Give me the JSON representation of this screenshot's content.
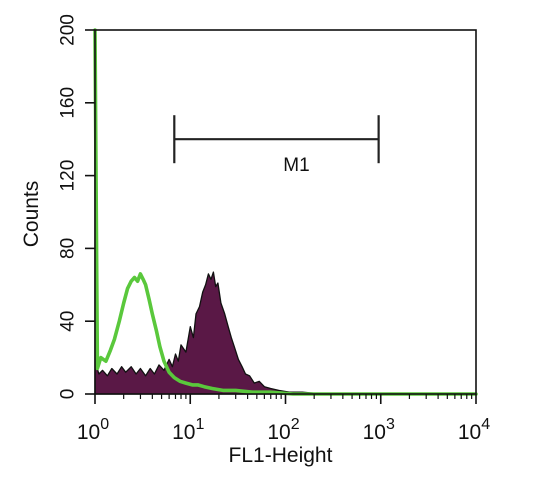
{
  "chart_data": {
    "type": "area",
    "xlabel": "FL1-Height",
    "ylabel": "Counts",
    "x_scale": "log",
    "xlim": [
      1,
      10000
    ],
    "ylim": [
      0,
      200
    ],
    "grid": false,
    "legend": "none",
    "y_ticks": [
      "0",
      "40",
      "80",
      "120",
      "160",
      "200"
    ],
    "x_ticks": [
      {
        "base": "10",
        "exp": "0"
      },
      {
        "base": "10",
        "exp": "1"
      },
      {
        "base": "10",
        "exp": "2"
      },
      {
        "base": "10",
        "exp": "3"
      },
      {
        "base": "10",
        "exp": "4"
      }
    ],
    "marker": {
      "label": "M1",
      "x_start": 6.8,
      "x_end": 950,
      "y": 140
    },
    "series": [
      {
        "style": "filled",
        "color": "#5a1846",
        "edge_color": "#111111",
        "points": [
          [
            1.0,
            200
          ],
          [
            1.03,
            16
          ],
          [
            1.1,
            11
          ],
          [
            1.2,
            13
          ],
          [
            1.35,
            10
          ],
          [
            1.5,
            14
          ],
          [
            1.7,
            11
          ],
          [
            1.9,
            15
          ],
          [
            2.1,
            12
          ],
          [
            2.4,
            15
          ],
          [
            2.7,
            11
          ],
          [
            3.0,
            14
          ],
          [
            3.4,
            10
          ],
          [
            3.8,
            14
          ],
          [
            4.2,
            11
          ],
          [
            4.7,
            16
          ],
          [
            5.3,
            13
          ],
          [
            6.0,
            19
          ],
          [
            6.5,
            15
          ],
          [
            7.0,
            22
          ],
          [
            7.5,
            18
          ],
          [
            8.0,
            27
          ],
          [
            9.0,
            23
          ],
          [
            10.0,
            37
          ],
          [
            10.8,
            31
          ],
          [
            11.5,
            44
          ],
          [
            12.5,
            48
          ],
          [
            13.5,
            56
          ],
          [
            14.5,
            60
          ],
          [
            15.5,
            66
          ],
          [
            16.5,
            63
          ],
          [
            17.5,
            67
          ],
          [
            18.5,
            59
          ],
          [
            19.5,
            61
          ],
          [
            21.0,
            50
          ],
          [
            23.0,
            44
          ],
          [
            25.0,
            37
          ],
          [
            27.0,
            31
          ],
          [
            29.0,
            26
          ],
          [
            32.0,
            19
          ],
          [
            35.0,
            15
          ],
          [
            38.0,
            11
          ],
          [
            42.0,
            10
          ],
          [
            47.0,
            6
          ],
          [
            53.0,
            7
          ],
          [
            60.0,
            4
          ],
          [
            70.0,
            3
          ],
          [
            85.0,
            2
          ],
          [
            110.0,
            1
          ],
          [
            150.0,
            1
          ],
          [
            250.0,
            0
          ],
          [
            10000,
            0
          ]
        ]
      },
      {
        "style": "line",
        "color": "#5ac83c",
        "points": [
          [
            1.0,
            200
          ],
          [
            1.06,
            14
          ],
          [
            1.15,
            20
          ],
          [
            1.3,
            18
          ],
          [
            1.45,
            24
          ],
          [
            1.6,
            30
          ],
          [
            1.8,
            40
          ],
          [
            2.0,
            50
          ],
          [
            2.2,
            58
          ],
          [
            2.4,
            62
          ],
          [
            2.6,
            64
          ],
          [
            2.8,
            62
          ],
          [
            3.0,
            66
          ],
          [
            3.2,
            63
          ],
          [
            3.4,
            60
          ],
          [
            3.7,
            52
          ],
          [
            4.0,
            44
          ],
          [
            4.4,
            35
          ],
          [
            4.8,
            26
          ],
          [
            5.3,
            18
          ],
          [
            6.0,
            12
          ],
          [
            6.8,
            9
          ],
          [
            7.8,
            7
          ],
          [
            9.0,
            6
          ],
          [
            10.5,
            5
          ],
          [
            12.0,
            5
          ],
          [
            14.0,
            4
          ],
          [
            17.0,
            3
          ],
          [
            22.0,
            2
          ],
          [
            30.0,
            2
          ],
          [
            45.0,
            1
          ],
          [
            70.0,
            1
          ],
          [
            120.0,
            0
          ],
          [
            10000,
            0
          ]
        ]
      }
    ]
  }
}
